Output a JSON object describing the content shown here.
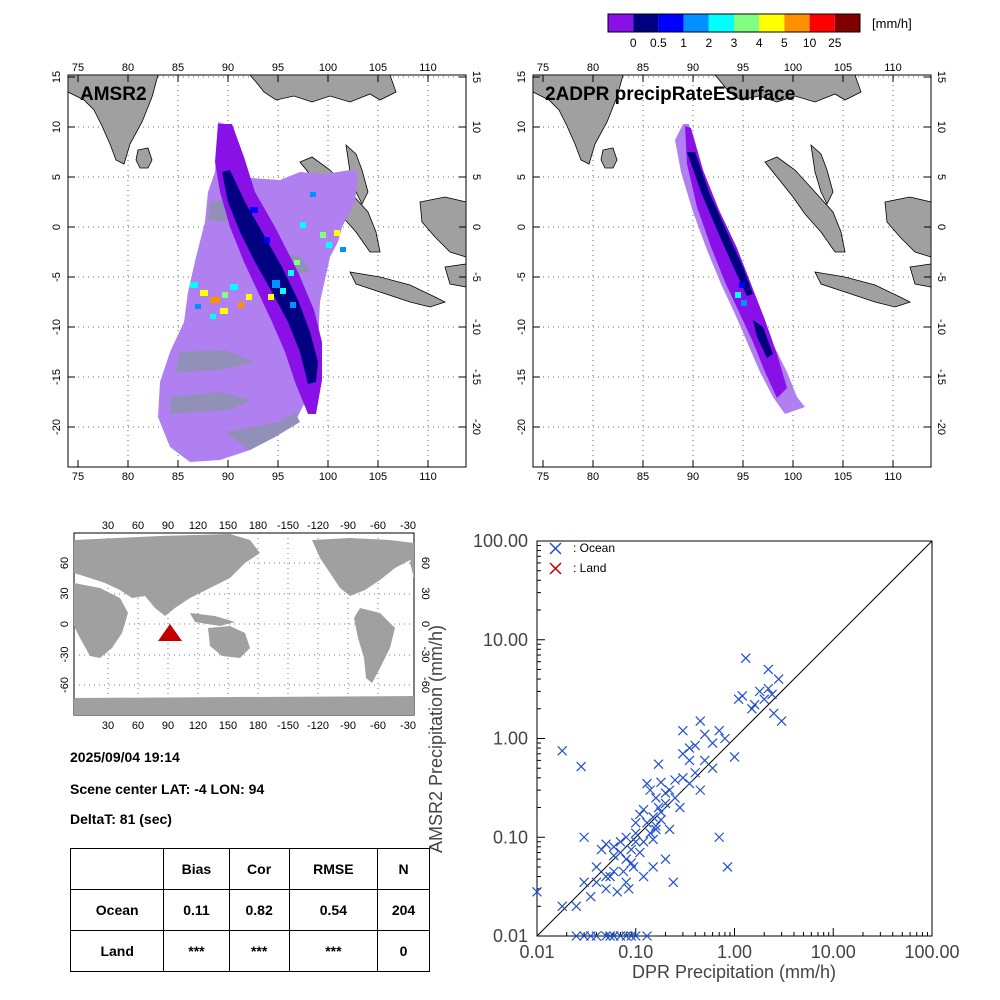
{
  "colorbar": {
    "unit": "[mm/h]",
    "labels": [
      "0",
      "0.5",
      "1",
      "2",
      "3",
      "4",
      "5",
      "10",
      "25"
    ],
    "colors": [
      "#8a10e8",
      "#000080",
      "#0000ff",
      "#0090ff",
      "#00ffff",
      "#80ff80",
      "#ffff00",
      "#ff9000",
      "#ff0000",
      "#800000"
    ]
  },
  "maps": {
    "amsr2": {
      "label": "AMSR2"
    },
    "dpr": {
      "label": "2ADPR precipRateESurface"
    },
    "lon_ticks": [
      "75",
      "80",
      "85",
      "90",
      "95",
      "100",
      "105",
      "110"
    ],
    "lat_ticks": [
      "15",
      "10",
      "5",
      "0",
      "-5",
      "-10",
      "-15",
      "-20"
    ],
    "land_color": "#a0a0a0",
    "rain_light": "#b080f0",
    "rain_gray": "#9090b8"
  },
  "world_map": {
    "lon_ticks": [
      "30",
      "60",
      "90",
      "120",
      "150",
      "180",
      "-150",
      "-120",
      "-90",
      "-60",
      "-30"
    ],
    "lat_ticks": [
      "60",
      "30",
      "0",
      "-30",
      "-60"
    ],
    "marker_color": "#c00000"
  },
  "info": {
    "datetime": "2025/09/04 19:14",
    "scene_center": "Scene center LAT: -4   LON:  94",
    "delta_t": "DeltaT:   81 (sec)"
  },
  "stats": {
    "headers": [
      "",
      "Bias",
      "Cor",
      "RMSE",
      "N"
    ],
    "rows": [
      {
        "label": "Ocean",
        "bias": "0.11",
        "cor": "0.82",
        "rmse": "0.54",
        "n": "204"
      },
      {
        "label": "Land",
        "bias": "***",
        "cor": "***",
        "rmse": "***",
        "n": "0"
      }
    ]
  },
  "chart_data": {
    "type": "scatter",
    "xlabel": "DPR Precipitation (mm/h)",
    "ylabel": "AMSR2 Precipitation (mm/h)",
    "xscale": "log",
    "yscale": "log",
    "xlim": [
      0.01,
      100
    ],
    "ylim": [
      0.01,
      100
    ],
    "x_tick_labels": [
      "0.01",
      "0.10",
      "1.00",
      "10.00",
      "100.00"
    ],
    "y_tick_labels": [
      "0.01",
      "0.10",
      "1.00",
      "10.00",
      "100.00"
    ],
    "legend": [
      {
        "name": ": Ocean",
        "color": "#2050d0"
      },
      {
        "name": ": Land",
        "color": "#c00000"
      }
    ],
    "legend_position": "top-left",
    "reference_line": "1:1",
    "series": [
      {
        "name": ": Ocean",
        "color": "#2050d0",
        "points": [
          [
            0.01,
            0.028
          ],
          [
            0.018,
            0.75
          ],
          [
            0.028,
            0.52
          ],
          [
            0.03,
            0.1
          ],
          [
            0.018,
            0.02
          ],
          [
            0.025,
            0.01
          ],
          [
            0.03,
            0.01
          ],
          [
            0.035,
            0.01
          ],
          [
            0.04,
            0.01
          ],
          [
            0.05,
            0.01
          ],
          [
            0.055,
            0.01
          ],
          [
            0.06,
            0.01
          ],
          [
            0.07,
            0.01
          ],
          [
            0.08,
            0.01
          ],
          [
            0.09,
            0.01
          ],
          [
            0.1,
            0.01
          ],
          [
            0.13,
            0.01
          ],
          [
            0.025,
            0.02
          ],
          [
            0.03,
            0.035
          ],
          [
            0.035,
            0.025
          ],
          [
            0.04,
            0.05
          ],
          [
            0.045,
            0.075
          ],
          [
            0.05,
            0.03
          ],
          [
            0.055,
            0.04
          ],
          [
            0.06,
            0.08
          ],
          [
            0.065,
            0.028
          ],
          [
            0.07,
            0.09
          ],
          [
            0.075,
            0.045
          ],
          [
            0.08,
            0.06
          ],
          [
            0.085,
            0.03
          ],
          [
            0.09,
            0.075
          ],
          [
            0.095,
            0.05
          ],
          [
            0.1,
            0.11
          ],
          [
            0.11,
            0.07
          ],
          [
            0.12,
            0.09
          ],
          [
            0.13,
            0.14
          ],
          [
            0.14,
            0.11
          ],
          [
            0.15,
            0.095
          ],
          [
            0.16,
            0.12
          ],
          [
            0.17,
            0.2
          ],
          [
            0.18,
            0.15
          ],
          [
            0.2,
            0.22
          ],
          [
            0.22,
            0.12
          ],
          [
            0.24,
            0.035
          ],
          [
            0.05,
            0.085
          ],
          [
            0.06,
            0.065
          ],
          [
            0.08,
            0.1
          ],
          [
            0.09,
            0.055
          ],
          [
            0.11,
            0.17
          ],
          [
            0.12,
            0.19
          ],
          [
            0.14,
            0.3
          ],
          [
            0.16,
            0.25
          ],
          [
            0.18,
            0.18
          ],
          [
            0.2,
            0.28
          ],
          [
            0.22,
            0.3
          ],
          [
            0.25,
            0.25
          ],
          [
            0.28,
            0.2
          ],
          [
            0.3,
            0.4
          ],
          [
            0.35,
            0.35
          ],
          [
            0.4,
            0.45
          ],
          [
            0.45,
            0.3
          ],
          [
            0.5,
            0.6
          ],
          [
            0.6,
            0.5
          ],
          [
            0.3,
            0.7
          ],
          [
            0.35,
            0.8
          ],
          [
            0.4,
            0.85
          ],
          [
            0.45,
            1.5
          ],
          [
            0.5,
            1.1
          ],
          [
            0.6,
            0.9
          ],
          [
            0.7,
            1.2
          ],
          [
            0.8,
            1.0
          ],
          [
            0.3,
            1.2
          ],
          [
            0.7,
            0.1
          ],
          [
            0.85,
            0.05
          ],
          [
            1.0,
            0.65
          ],
          [
            1.1,
            2.5
          ],
          [
            1.2,
            2.7
          ],
          [
            1.3,
            6.5
          ],
          [
            1.5,
            2.0
          ],
          [
            1.8,
            3.0
          ],
          [
            2.0,
            2.5
          ],
          [
            2.2,
            5.0
          ],
          [
            2.5,
            1.8
          ],
          [
            2.8,
            4.0
          ],
          [
            3.0,
            1.5
          ],
          [
            0.15,
            0.05
          ],
          [
            0.2,
            0.06
          ],
          [
            0.12,
            0.04
          ],
          [
            0.08,
            0.035
          ],
          [
            0.06,
            0.045
          ],
          [
            0.1,
            0.14
          ],
          [
            0.13,
            0.35
          ],
          [
            0.25,
            0.38
          ],
          [
            0.35,
            0.6
          ],
          [
            0.15,
            0.16
          ],
          [
            0.18,
            0.36
          ],
          [
            0.1,
            0.09
          ],
          [
            0.07,
            0.07
          ],
          [
            0.05,
            0.04
          ],
          [
            0.04,
            0.035
          ],
          [
            0.16,
            0.13
          ],
          [
            0.17,
            0.55
          ],
          [
            1.6,
            2.2
          ],
          [
            2.2,
            3.2
          ],
          [
            2.4,
            2.8
          ]
        ]
      },
      {
        "name": ": Land",
        "color": "#c00000",
        "points": []
      }
    ]
  }
}
